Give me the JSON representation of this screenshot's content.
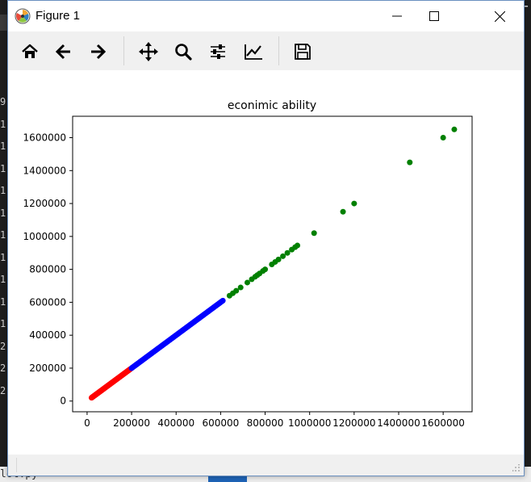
{
  "window": {
    "title": "Figure 1"
  },
  "background": {
    "gutter_chars": [
      "9",
      "1",
      "1",
      "1",
      "1",
      "1",
      "1",
      "1",
      "1",
      "1",
      "1",
      "2",
      "2",
      "2"
    ],
    "filename": "lot.py",
    "topright_char": "T"
  },
  "toolbar": {
    "buttons": [
      {
        "name": "home",
        "icon": "home-icon"
      },
      {
        "name": "back",
        "icon": "arrow-left-icon"
      },
      {
        "name": "forward",
        "icon": "arrow-right-icon"
      },
      {
        "name": "pan",
        "icon": "move-icon"
      },
      {
        "name": "zoom",
        "icon": "magnifier-icon"
      },
      {
        "name": "subplots",
        "icon": "sliders-icon"
      },
      {
        "name": "edit-axes",
        "icon": "line-chart-icon"
      },
      {
        "name": "save",
        "icon": "floppy-disk-icon"
      }
    ]
  },
  "chart_data": {
    "type": "scatter",
    "title": "econimic ability",
    "xlabel": "",
    "ylabel": "",
    "xlim": [
      -65000,
      1730000
    ],
    "ylim": [
      -65000,
      1730000
    ],
    "xticks": [
      0,
      200000,
      400000,
      600000,
      800000,
      1000000,
      1200000,
      1400000,
      1600000
    ],
    "yticks": [
      0,
      200000,
      400000,
      600000,
      800000,
      1000000,
      1200000,
      1400000,
      1600000
    ],
    "grid": false,
    "series": [
      {
        "color": "#ff0000",
        "x_range": [
          20000,
          195000
        ],
        "note_points": "dense"
      },
      {
        "color": "#0000ff",
        "x_range": [
          200000,
          610000
        ],
        "note_points": "dense"
      },
      {
        "color": "#008000",
        "points": [
          [
            640000,
            640000
          ],
          [
            655000,
            655000
          ],
          [
            670000,
            670000
          ],
          [
            690000,
            690000
          ],
          [
            720000,
            720000
          ],
          [
            740000,
            740000
          ],
          [
            755000,
            755000
          ],
          [
            765000,
            765000
          ],
          [
            775000,
            775000
          ],
          [
            790000,
            790000
          ],
          [
            800000,
            800000
          ],
          [
            830000,
            830000
          ],
          [
            845000,
            845000
          ],
          [
            860000,
            860000
          ],
          [
            880000,
            880000
          ],
          [
            900000,
            900000
          ],
          [
            920000,
            920000
          ],
          [
            935000,
            935000
          ],
          [
            945000,
            945000
          ],
          [
            1020000,
            1020000
          ],
          [
            1150000,
            1150000
          ],
          [
            1200000,
            1200000
          ],
          [
            1450000,
            1450000
          ],
          [
            1600000,
            1600000
          ],
          [
            1650000,
            1650000
          ]
        ]
      }
    ],
    "colors": {
      "low": "#ff0000",
      "mid": "#0000ff",
      "high": "#008000"
    }
  }
}
